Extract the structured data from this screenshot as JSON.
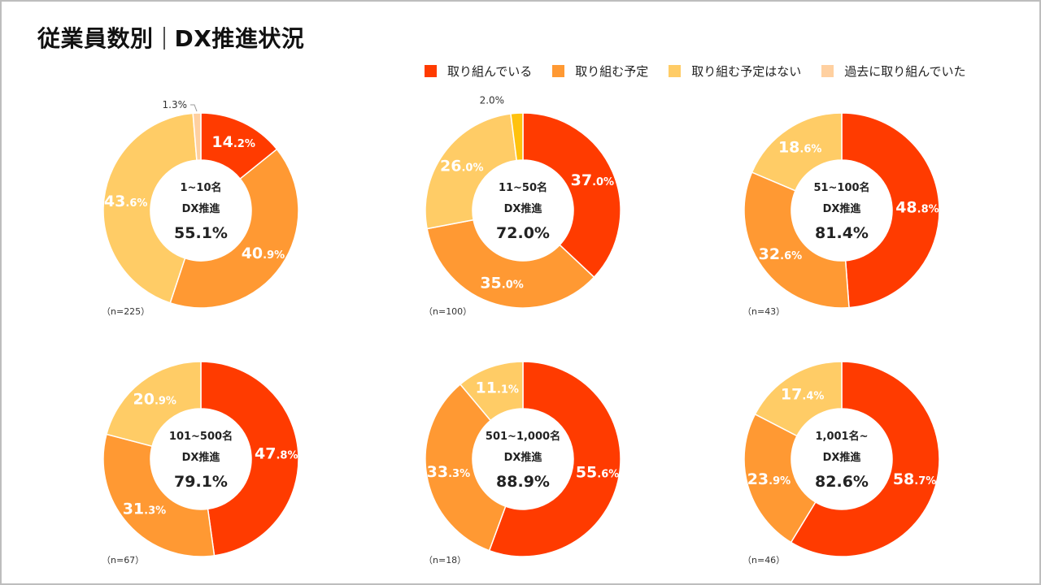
{
  "title": {
    "part1": "従業員数別",
    "part2": "DX推進状況"
  },
  "legend": [
    {
      "label": "取り組んでいる",
      "color": "#ff3b00"
    },
    {
      "label": "取り組む予定",
      "color": "#ff9933"
    },
    {
      "label": "取り組む予定はない",
      "color": "#ffcc66"
    },
    {
      "label": "過去に取り組んでいた",
      "color": "#ffd0a0"
    }
  ],
  "center_subtitle": "DX推進",
  "chart_data": [
    {
      "type": "pie",
      "group": "1~10名",
      "dx": "55.1%",
      "n": "（n=225）",
      "series": [
        {
          "name": "取り組んでいる",
          "value": 14.2,
          "int": "14",
          "dec": ".2%"
        },
        {
          "name": "取り組む予定",
          "value": 40.9,
          "int": "40",
          "dec": ".9%"
        },
        {
          "name": "取り組む予定はない",
          "value": 43.6,
          "int": "43",
          "dec": ".6%"
        },
        {
          "name": "過去に取り組んでいた",
          "value": 1.3,
          "small": "1.3%"
        }
      ]
    },
    {
      "type": "pie",
      "group": "11~50名",
      "dx": "72.0%",
      "n": "（n=100）",
      "series": [
        {
          "name": "取り組んでいる",
          "value": 37.0,
          "int": "37",
          "dec": ".0%"
        },
        {
          "name": "取り組む予定",
          "value": 35.0,
          "int": "35",
          "dec": ".0%"
        },
        {
          "name": "取り組む予定はない",
          "value": 26.0,
          "int": "26",
          "dec": ".0%"
        },
        {
          "name": "過去に取り組んでいた",
          "value": 2.0,
          "small": "2.0%"
        }
      ]
    },
    {
      "type": "pie",
      "group": "51~100名",
      "dx": "81.4%",
      "n": "（n=43）",
      "series": [
        {
          "name": "取り組んでいる",
          "value": 48.8,
          "int": "48",
          "dec": ".8%"
        },
        {
          "name": "取り組む予定",
          "value": 32.6,
          "int": "32",
          "dec": ".6%"
        },
        {
          "name": "取り組む予定はない",
          "value": 18.6,
          "int": "18",
          "dec": ".6%"
        }
      ]
    },
    {
      "type": "pie",
      "group": "101~500名",
      "dx": "79.1%",
      "n": "（n=67）",
      "series": [
        {
          "name": "取り組んでいる",
          "value": 47.8,
          "int": "47",
          "dec": ".8%"
        },
        {
          "name": "取り組む予定",
          "value": 31.3,
          "int": "31",
          "dec": ".3%"
        },
        {
          "name": "取り組む予定はない",
          "value": 20.9,
          "int": "20",
          "dec": ".9%"
        }
      ]
    },
    {
      "type": "pie",
      "group": "501~1,000名",
      "dx": "88.9%",
      "n": "（n=18）",
      "series": [
        {
          "name": "取り組んでいる",
          "value": 55.6,
          "int": "55",
          "dec": ".6%"
        },
        {
          "name": "取り組む予定",
          "value": 33.3,
          "int": "33",
          "dec": ".3%"
        },
        {
          "name": "取り組む予定はない",
          "value": 11.1,
          "int": "11",
          "dec": ".1%"
        }
      ]
    },
    {
      "type": "pie",
      "group": "1,001名~",
      "dx": "82.6%",
      "n": "（n=46）",
      "series": [
        {
          "name": "取り組んでいる",
          "value": 58.7,
          "int": "58",
          "dec": ".7%"
        },
        {
          "name": "取り組む予定",
          "value": 23.9,
          "int": "23",
          "dec": ".9%"
        },
        {
          "name": "取り組む予定はない",
          "value": 17.4,
          "int": "17",
          "dec": ".4%"
        }
      ]
    }
  ]
}
